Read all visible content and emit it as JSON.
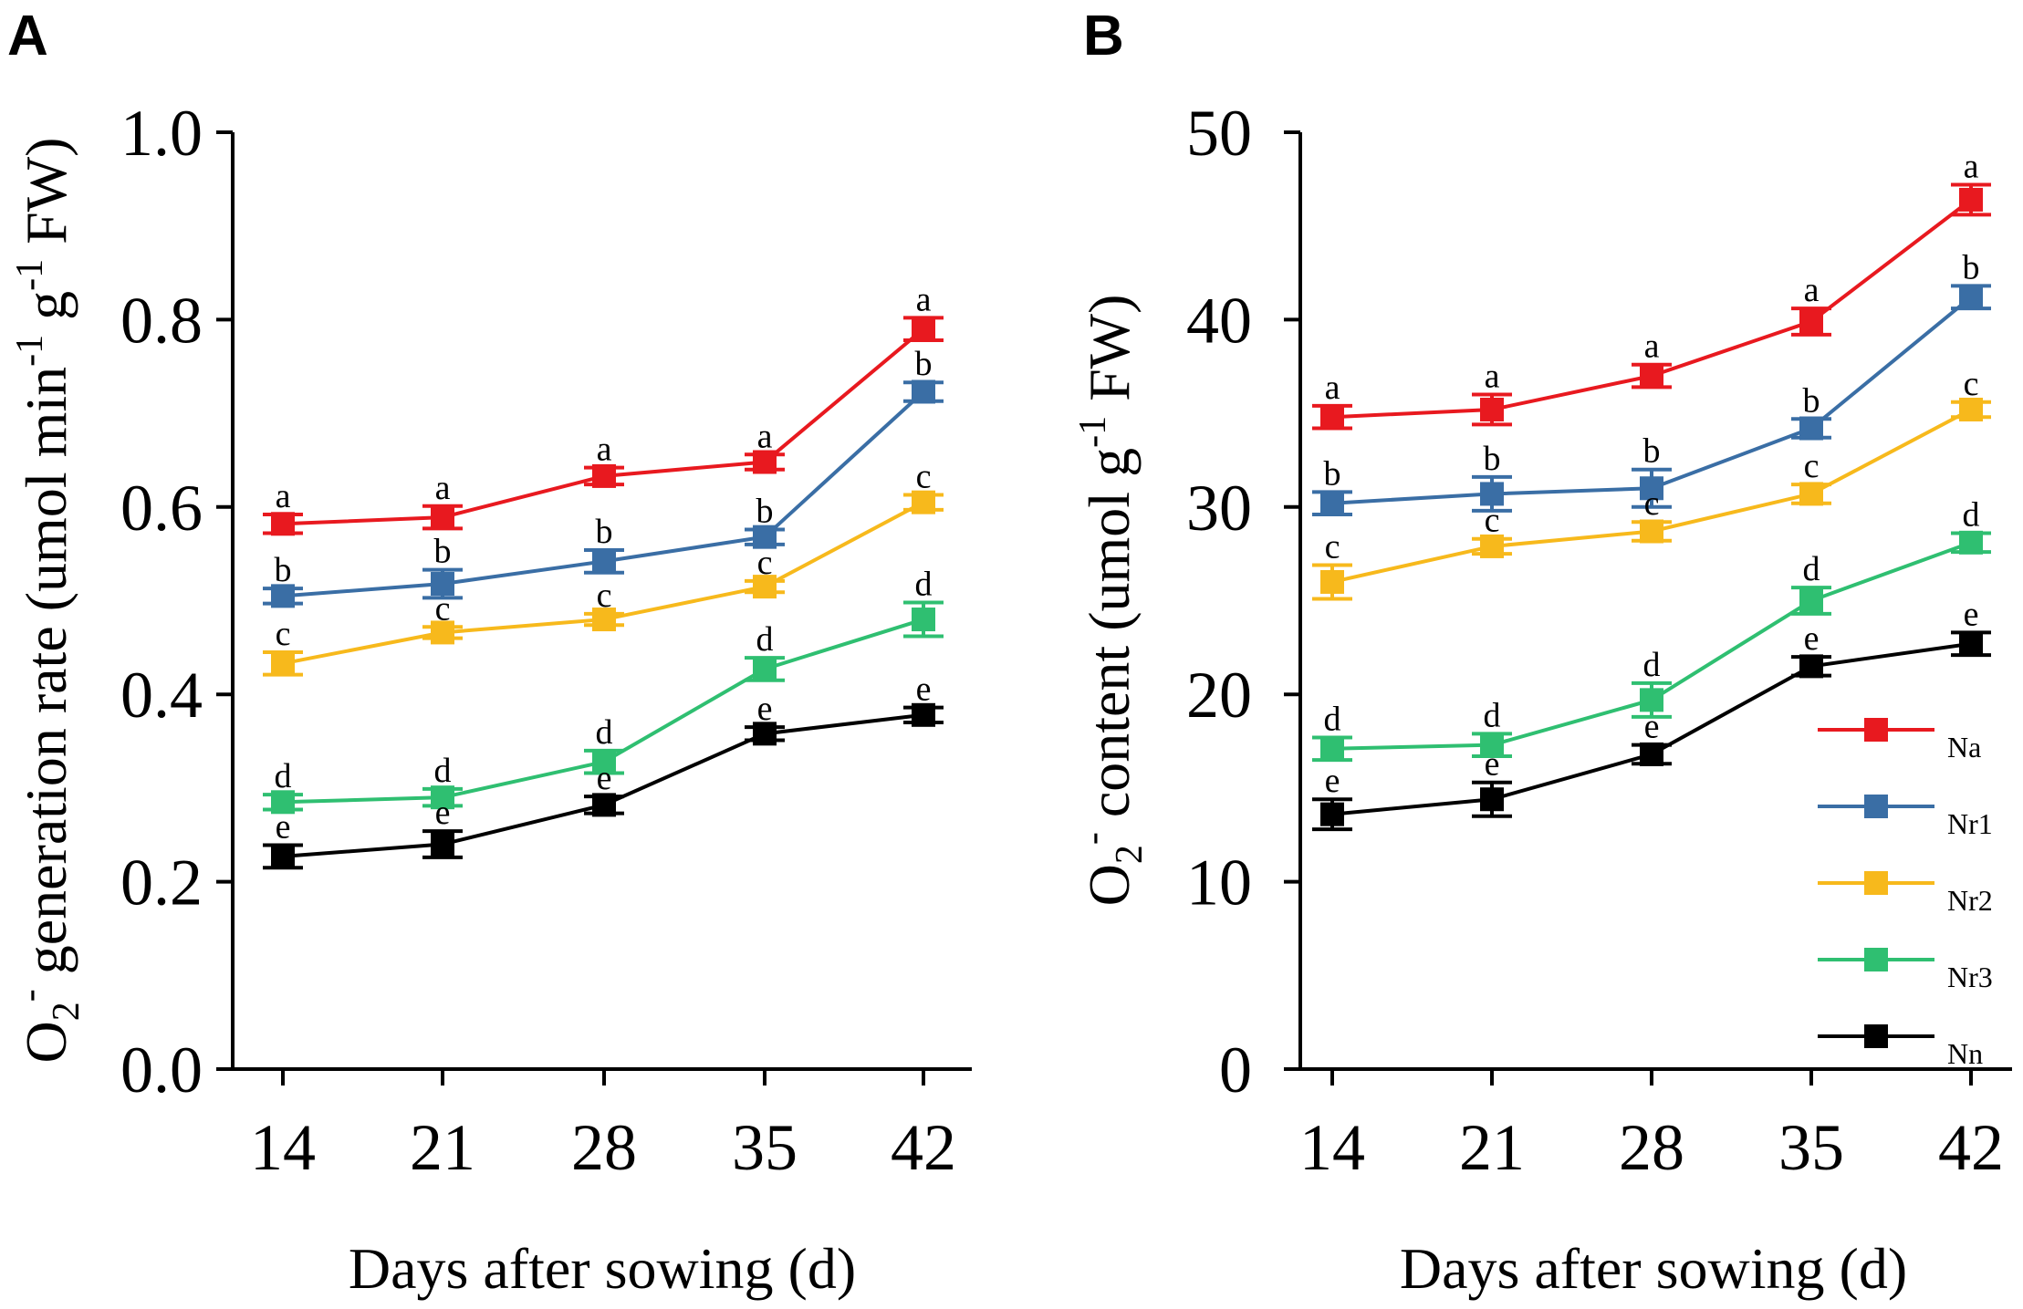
{
  "chart_data": [
    {
      "panel": "A",
      "type": "line",
      "xlabel": "Days after sowing (d)",
      "ylabel": {
        "pre": "O",
        "sub1": "2",
        "sup1": "-",
        "mid": " generation rate (umol min",
        "sup2": "-1",
        "mid2": " g",
        "sup3": "-1",
        "post": " FW)"
      },
      "x": [
        14,
        21,
        28,
        35,
        42
      ],
      "x_tick_labels": [
        "14",
        "21",
        "28",
        "35",
        "42"
      ],
      "ylim": [
        0.0,
        1.0
      ],
      "y_ticks": [
        0.0,
        0.2,
        0.4,
        0.6,
        0.8,
        1.0
      ],
      "y_tick_labels": [
        "0.0",
        "0.2",
        "0.4",
        "0.6",
        "0.8",
        "1.0"
      ],
      "series": [
        {
          "name": "Na",
          "color": "#e8191f",
          "values": [
            0.582,
            0.589,
            0.633,
            0.648,
            0.79
          ],
          "errors": [
            0.01,
            0.012,
            0.009,
            0.008,
            0.012
          ],
          "labels": [
            "a",
            "a",
            "a",
            "a",
            "a"
          ]
        },
        {
          "name": "Nr1",
          "color": "#3a6ea5",
          "values": [
            0.505,
            0.518,
            0.542,
            0.568,
            0.723
          ],
          "errors": [
            0.008,
            0.015,
            0.012,
            0.008,
            0.01
          ],
          "labels": [
            "b",
            "b",
            "b",
            "b",
            "b"
          ]
        },
        {
          "name": "Nr2",
          "color": "#f7b91c",
          "values": [
            0.433,
            0.466,
            0.48,
            0.515,
            0.605
          ],
          "errors": [
            0.012,
            0.006,
            0.006,
            0.006,
            0.008
          ],
          "labels": [
            "c",
            "c",
            "c",
            "c",
            "c"
          ]
        },
        {
          "name": "Nr3",
          "color": "#2fbf71",
          "values": [
            0.285,
            0.29,
            0.328,
            0.427,
            0.48
          ],
          "errors": [
            0.008,
            0.009,
            0.012,
            0.012,
            0.018
          ],
          "labels": [
            "d",
            "d",
            "d",
            "d",
            "d"
          ]
        },
        {
          "name": "Nn",
          "color": "#000000",
          "values": [
            0.227,
            0.24,
            0.282,
            0.358,
            0.378
          ],
          "errors": [
            0.012,
            0.014,
            0.009,
            0.007,
            0.008
          ],
          "labels": [
            "e",
            "e",
            "e",
            "e",
            "e"
          ]
        }
      ]
    },
    {
      "panel": "B",
      "type": "line",
      "xlabel": "Days after sowing (d)",
      "ylabel": {
        "pre": "O",
        "sub1": "2",
        "sup1": "-",
        "mid": " content (umol g",
        "sup2": "-1",
        "post": " FW)"
      },
      "x": [
        14,
        21,
        28,
        35,
        42
      ],
      "x_tick_labels": [
        "14",
        "21",
        "28",
        "35",
        "42"
      ],
      "ylim": [
        0,
        50
      ],
      "y_ticks": [
        0,
        10,
        20,
        30,
        40,
        50
      ],
      "y_tick_labels": [
        "0",
        "10",
        "20",
        "30",
        "40",
        "50"
      ],
      "legend": "bottom-right",
      "series": [
        {
          "name": "Na",
          "color": "#e8191f",
          "values": [
            34.8,
            35.2,
            37.0,
            39.9,
            46.4
          ],
          "errors": [
            0.6,
            0.8,
            0.6,
            0.7,
            0.8
          ],
          "labels": [
            "a",
            "a",
            "a",
            "a",
            "a"
          ]
        },
        {
          "name": "Nr1",
          "color": "#3a6ea5",
          "values": [
            30.2,
            30.7,
            31.0,
            34.2,
            41.2
          ],
          "errors": [
            0.6,
            0.9,
            1.0,
            0.5,
            0.6
          ],
          "labels": [
            "b",
            "b",
            "b",
            "b",
            "b"
          ]
        },
        {
          "name": "Nr2",
          "color": "#f7b91c",
          "values": [
            26.0,
            27.9,
            28.7,
            30.7,
            35.2
          ],
          "errors": [
            0.9,
            0.4,
            0.5,
            0.5,
            0.4
          ],
          "labels": [
            "c",
            "c",
            "c",
            "c",
            "c"
          ]
        },
        {
          "name": "Nr3",
          "color": "#2fbf71",
          "values": [
            17.1,
            17.3,
            19.7,
            25.0,
            28.1
          ],
          "errors": [
            0.6,
            0.6,
            0.9,
            0.7,
            0.5
          ],
          "labels": [
            "d",
            "d",
            "d",
            "d",
            "d"
          ]
        },
        {
          "name": "Nn",
          "color": "#000000",
          "values": [
            13.6,
            14.4,
            16.8,
            21.5,
            22.7
          ],
          "errors": [
            0.8,
            0.9,
            0.5,
            0.5,
            0.6
          ],
          "labels": [
            "e",
            "e",
            "e",
            "e",
            "e"
          ]
        }
      ]
    }
  ]
}
